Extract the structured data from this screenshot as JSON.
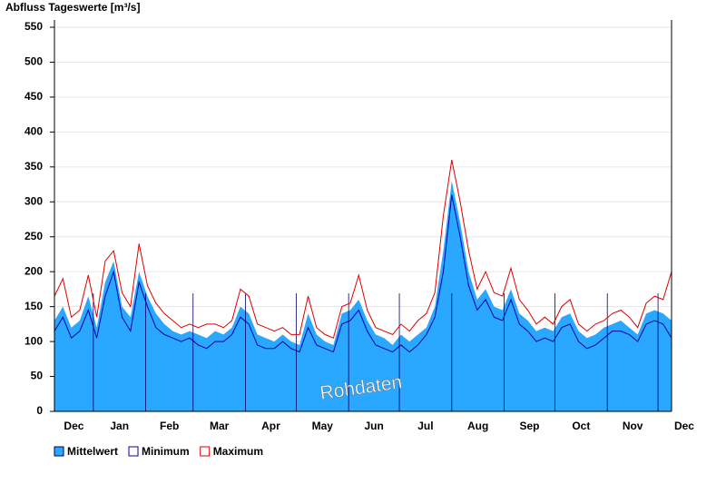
{
  "chart_data": {
    "type": "area-band",
    "y_label": "Abfluss Tageswerte [m³/s]",
    "watermark": "Rohdaten",
    "xlim": [
      0,
      365
    ],
    "month_boundaries": [
      23,
      54,
      82,
      113,
      143,
      174,
      204,
      235,
      266,
      296,
      327,
      357
    ],
    "month_labels": [
      {
        "value": 11.5,
        "label": "Dec"
      },
      {
        "value": 38.5,
        "label": "Jan"
      },
      {
        "value": 68,
        "label": "Feb"
      },
      {
        "value": 97.5,
        "label": "Mar"
      },
      {
        "value": 128,
        "label": "Apr"
      },
      {
        "value": 158.5,
        "label": "May"
      },
      {
        "value": 189,
        "label": "Jun"
      },
      {
        "value": 219.5,
        "label": "Jul"
      },
      {
        "value": 250.5,
        "label": "Aug"
      },
      {
        "value": 281,
        "label": "Sep"
      },
      {
        "value": 311.5,
        "label": "Oct"
      },
      {
        "value": 342,
        "label": "Nov"
      },
      {
        "value": 372.5,
        "label": "Dec"
      }
    ],
    "ylim": [
      0,
      550
    ],
    "yticks": [
      0,
      50,
      100,
      150,
      200,
      250,
      300,
      350,
      400,
      450,
      500,
      550
    ],
    "grid": true,
    "x": [
      0,
      5,
      10,
      15,
      20,
      25,
      30,
      35,
      40,
      45,
      50,
      55,
      60,
      65,
      70,
      75,
      80,
      85,
      90,
      95,
      100,
      105,
      110,
      115,
      120,
      125,
      130,
      135,
      140,
      145,
      150,
      155,
      160,
      165,
      170,
      175,
      180,
      185,
      190,
      195,
      200,
      205,
      210,
      215,
      220,
      225,
      230,
      235,
      240,
      245,
      250,
      255,
      260,
      265,
      270,
      275,
      280,
      285,
      290,
      295,
      300,
      305,
      310,
      315,
      320,
      325,
      330,
      335,
      340,
      345,
      350,
      355,
      360,
      365
    ],
    "series": [
      {
        "name": "Mittelwert",
        "color": "#2aa7ff",
        "style": "area",
        "values": [
          130,
          150,
          120,
          130,
          165,
          120,
          185,
          215,
          150,
          135,
          200,
          165,
          140,
          125,
          115,
          110,
          115,
          110,
          105,
          115,
          110,
          120,
          150,
          140,
          110,
          105,
          100,
          110,
          100,
          95,
          140,
          110,
          100,
          95,
          140,
          145,
          160,
          130,
          110,
          105,
          95,
          110,
          100,
          110,
          120,
          150,
          230,
          330,
          270,
          200,
          160,
          175,
          150,
          145,
          175,
          140,
          130,
          115,
          120,
          115,
          135,
          140,
          115,
          105,
          110,
          120,
          125,
          130,
          120,
          110,
          140,
          145,
          140,
          130
        ]
      },
      {
        "name": "Minimum",
        "color": "#0000aa",
        "style": "line",
        "values": [
          115,
          135,
          105,
          115,
          145,
          105,
          165,
          200,
          135,
          115,
          185,
          150,
          120,
          110,
          105,
          100,
          105,
          95,
          90,
          100,
          100,
          110,
          135,
          125,
          95,
          90,
          90,
          100,
          90,
          85,
          120,
          95,
          90,
          85,
          125,
          130,
          145,
          115,
          95,
          90,
          85,
          95,
          85,
          95,
          110,
          135,
          200,
          310,
          250,
          180,
          145,
          160,
          135,
          130,
          160,
          125,
          115,
          100,
          105,
          100,
          120,
          125,
          100,
          90,
          95,
          105,
          115,
          115,
          110,
          100,
          125,
          130,
          125,
          105
        ]
      },
      {
        "name": "Maximum",
        "color": "#dd0000",
        "style": "line",
        "values": [
          165,
          190,
          135,
          145,
          195,
          135,
          215,
          230,
          170,
          150,
          240,
          180,
          155,
          140,
          130,
          120,
          125,
          120,
          125,
          125,
          120,
          130,
          175,
          165,
          125,
          120,
          115,
          120,
          110,
          110,
          165,
          120,
          110,
          105,
          150,
          155,
          195,
          145,
          120,
          115,
          110,
          125,
          115,
          130,
          140,
          170,
          280,
          360,
          300,
          230,
          175,
          200,
          170,
          165,
          205,
          160,
          145,
          125,
          135,
          125,
          150,
          160,
          125,
          115,
          125,
          130,
          140,
          145,
          135,
          120,
          155,
          165,
          160,
          200
        ]
      }
    ]
  }
}
